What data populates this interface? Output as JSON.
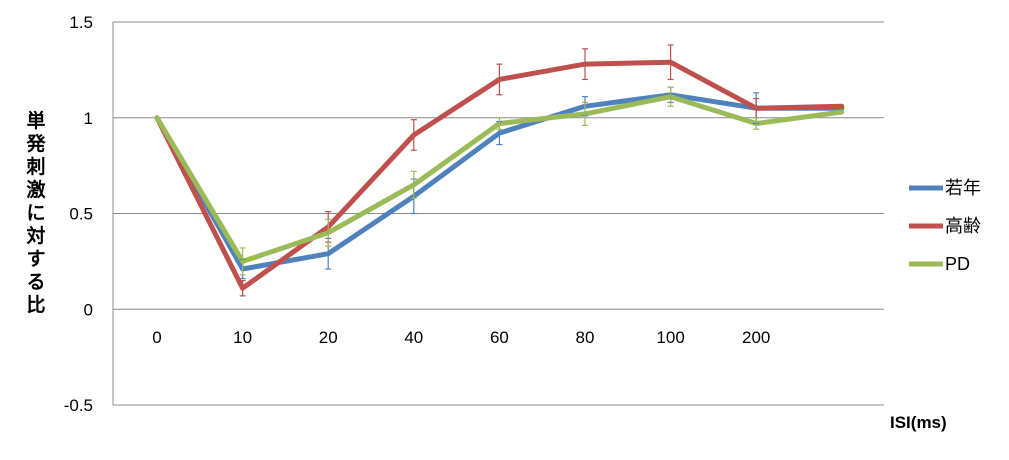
{
  "chart_data": {
    "type": "line",
    "categories": [
      "0",
      "10",
      "20",
      "40",
      "60",
      "80",
      "100",
      "200",
      ""
    ],
    "ylabel": "単発刺激に対する比",
    "xlabel": "ISI(ms)",
    "ylim": [
      -0.5,
      1.5
    ],
    "yticks": [
      -0.5,
      0,
      0.5,
      1,
      1.5
    ],
    "ytick_labels": [
      "-0.5",
      "0",
      "0.5",
      "1",
      "1.5"
    ],
    "grid": "horizontal",
    "legend_position": "right",
    "series": [
      {
        "name": "若年",
        "color": "#4f81bd",
        "values": [
          1.0,
          0.21,
          0.29,
          0.59,
          0.92,
          1.06,
          1.12,
          1.05,
          1.05
        ],
        "errors": [
          0,
          0.05,
          0.08,
          0.09,
          0.06,
          0.05,
          0.04,
          0.08,
          null
        ]
      },
      {
        "name": "高齢",
        "color": "#c0504d",
        "values": [
          1.0,
          0.11,
          0.43,
          0.91,
          1.2,
          1.28,
          1.29,
          1.05,
          1.06
        ],
        "errors": [
          0,
          0.04,
          0.08,
          0.08,
          0.08,
          0.08,
          0.09,
          0.05,
          null
        ]
      },
      {
        "name": "PD",
        "color": "#9bbb59",
        "values": [
          1.0,
          0.25,
          0.4,
          0.65,
          0.97,
          1.02,
          1.11,
          0.97,
          1.03
        ],
        "errors": [
          0,
          0.07,
          0.07,
          0.07,
          0.03,
          0.06,
          0.05,
          0.03,
          null
        ]
      }
    ]
  }
}
